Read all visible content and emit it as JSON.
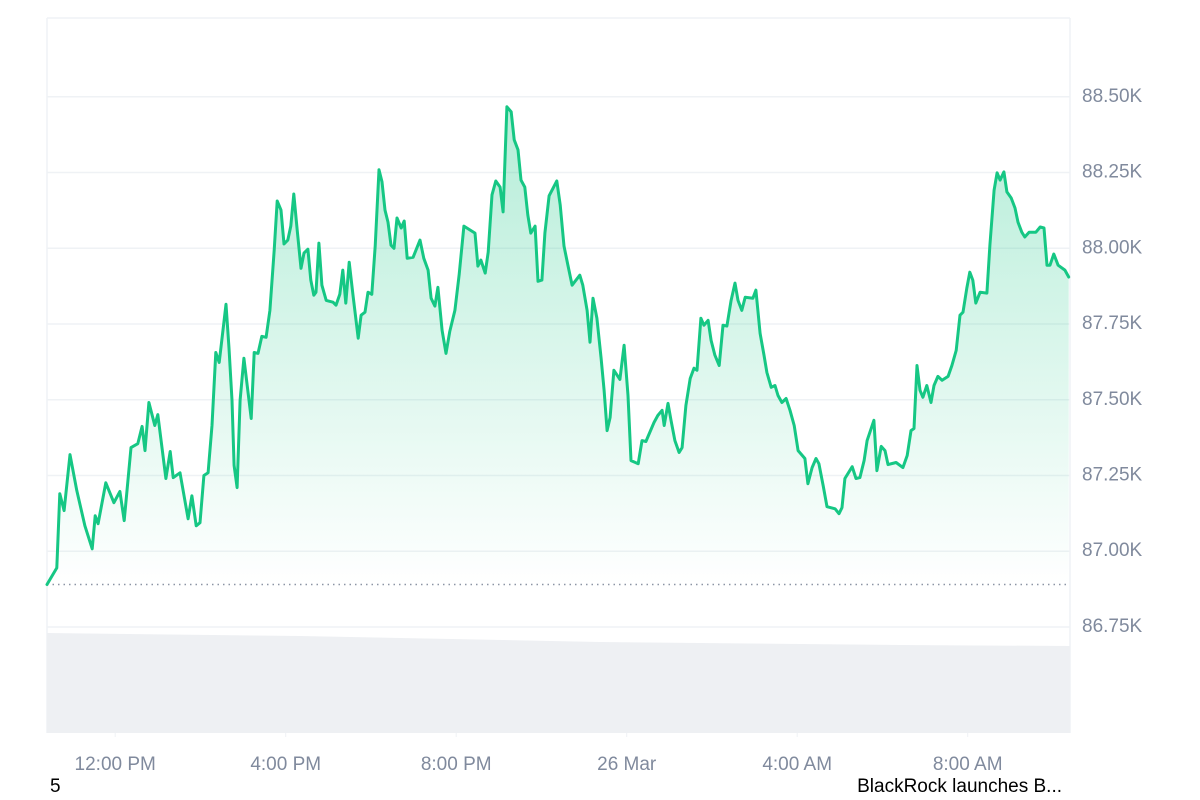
{
  "chart_data": {
    "type": "area",
    "color": "#16c784",
    "grid": true,
    "y_axis_side": "right",
    "xlim": [
      10.4,
      34.4
    ],
    "xticks": [
      {
        "value": 12,
        "label": "12:00 PM"
      },
      {
        "value": 16,
        "label": "4:00 PM"
      },
      {
        "value": 20,
        "label": "8:00 PM"
      },
      {
        "value": 24,
        "label": "26 Mar"
      },
      {
        "value": 28,
        "label": "4:00 AM"
      },
      {
        "value": 32,
        "label": "8:00 AM"
      }
    ],
    "ylim": [
      86400,
      88760
    ],
    "yticks": [
      {
        "value": 86750,
        "label": "86.75K"
      },
      {
        "value": 87000,
        "label": "87.00K"
      },
      {
        "value": 87250,
        "label": "87.25K"
      },
      {
        "value": 87500,
        "label": "87.50K"
      },
      {
        "value": 87750,
        "label": "87.75K"
      },
      {
        "value": 88000,
        "label": "88.00K"
      },
      {
        "value": 88250,
        "label": "88.25K"
      },
      {
        "value": 88500,
        "label": "88.50K"
      }
    ],
    "x": [
      10.4,
      10.63,
      10.7,
      10.8,
      10.94,
      11.1,
      11.29,
      11.46,
      11.53,
      11.6,
      11.78,
      11.97,
      12.11,
      12.21,
      12.37,
      12.53,
      12.63,
      12.7,
      12.79,
      12.93,
      13.0,
      13.19,
      13.29,
      13.36,
      13.52,
      13.71,
      13.8,
      13.9,
      13.99,
      14.08,
      14.18,
      14.27,
      14.36,
      14.44,
      14.6,
      14.67,
      14.74,
      14.79,
      14.86,
      14.93,
      15.02,
      15.19,
      15.26,
      15.35,
      15.44,
      15.54,
      15.63,
      15.73,
      15.8,
      15.89,
      15.96,
      16.05,
      16.12,
      16.19,
      16.27,
      16.36,
      16.43,
      16.52,
      16.59,
      16.66,
      16.71,
      16.78,
      16.85,
      16.95,
      17.11,
      17.18,
      17.27,
      17.34,
      17.41,
      17.49,
      17.58,
      17.7,
      17.77,
      17.86,
      17.93,
      18.02,
      18.1,
      18.19,
      18.26,
      18.33,
      18.4,
      18.47,
      18.54,
      18.61,
      18.71,
      18.78,
      18.85,
      18.99,
      19.15,
      19.24,
      19.34,
      19.41,
      19.5,
      19.57,
      19.67,
      19.76,
      19.85,
      19.97,
      20.07,
      20.18,
      20.44,
      20.51,
      20.58,
      20.68,
      20.75,
      20.84,
      20.93,
      21.03,
      21.1,
      21.19,
      21.29,
      21.36,
      21.45,
      21.52,
      21.61,
      21.68,
      21.75,
      21.85,
      21.92,
      22.01,
      22.08,
      22.18,
      22.36,
      22.44,
      22.53,
      22.62,
      22.72,
      22.9,
      22.97,
      23.07,
      23.14,
      23.21,
      23.3,
      23.4,
      23.47,
      23.54,
      23.61,
      23.7,
      23.84,
      23.94,
      24.03,
      24.1,
      24.27,
      24.36,
      24.45,
      24.64,
      24.73,
      24.83,
      24.88,
      24.97,
      25.04,
      25.13,
      25.23,
      25.3,
      25.39,
      25.49,
      25.58,
      25.65,
      25.74,
      25.81,
      25.91,
      25.98,
      26.07,
      26.17,
      26.26,
      26.35,
      26.45,
      26.54,
      26.61,
      26.7,
      26.78,
      26.96,
      27.03,
      27.13,
      27.22,
      27.29,
      27.39,
      27.48,
      27.55,
      27.64,
      27.74,
      27.83,
      27.93,
      28.02,
      28.18,
      28.25,
      28.35,
      28.44,
      28.51,
      28.61,
      28.7,
      28.89,
      28.98,
      29.05,
      29.12,
      29.29,
      29.38,
      29.47,
      29.57,
      29.64,
      29.8,
      29.87,
      29.97,
      30.06,
      30.13,
      30.32,
      30.48,
      30.58,
      30.67,
      30.74,
      30.81,
      30.88,
      30.95,
      31.04,
      31.14,
      31.21,
      31.3,
      31.4,
      31.54,
      31.63,
      31.73,
      31.82,
      31.89,
      31.98,
      32.05,
      32.12,
      32.19,
      32.29,
      32.45,
      32.52,
      32.62,
      32.69,
      32.76,
      32.85,
      32.92,
      33.02,
      33.11,
      33.18,
      33.27,
      33.34,
      33.44,
      33.6,
      33.7,
      33.79,
      33.86,
      33.93,
      34.02,
      34.12,
      34.28,
      34.37
    ],
    "values": [
      86890,
      86945,
      87190,
      87134,
      87319,
      87200,
      87084,
      87008,
      87117,
      87091,
      87226,
      87160,
      87197,
      87101,
      87342,
      87355,
      87412,
      87332,
      87491,
      87415,
      87451,
      87240,
      87329,
      87243,
      87259,
      87107,
      87183,
      87084,
      87094,
      87250,
      87259,
      87415,
      87656,
      87623,
      87815,
      87670,
      87498,
      87283,
      87210,
      87498,
      87637,
      87438,
      87656,
      87653,
      87709,
      87706,
      87795,
      87994,
      88156,
      88126,
      88014,
      88027,
      88073,
      88179,
      88060,
      87934,
      87984,
      87997,
      87895,
      87845,
      87855,
      88017,
      87878,
      87828,
      87822,
      87812,
      87848,
      87928,
      87819,
      87954,
      87845,
      87703,
      87779,
      87789,
      87855,
      87848,
      88007,
      88259,
      88219,
      88126,
      88086,
      88010,
      88000,
      88100,
      88067,
      88090,
      87967,
      87970,
      88027,
      87967,
      87928,
      87835,
      87809,
      87871,
      87729,
      87653,
      87726,
      87795,
      87914,
      88073,
      88050,
      87941,
      87961,
      87918,
      87987,
      88176,
      88222,
      88202,
      88120,
      88467,
      88450,
      88358,
      88325,
      88225,
      88202,
      88110,
      88050,
      88073,
      87891,
      87895,
      88050,
      88173,
      88222,
      88143,
      88007,
      87944,
      87878,
      87911,
      87878,
      87795,
      87690,
      87835,
      87769,
      87637,
      87531,
      87398,
      87441,
      87597,
      87567,
      87680,
      87514,
      87299,
      87289,
      87365,
      87362,
      87425,
      87448,
      87465,
      87415,
      87488,
      87432,
      87365,
      87326,
      87342,
      87481,
      87570,
      87604,
      87597,
      87769,
      87746,
      87762,
      87696,
      87647,
      87613,
      87746,
      87743,
      87828,
      87885,
      87828,
      87795,
      87838,
      87835,
      87862,
      87719,
      87647,
      87590,
      87541,
      87547,
      87514,
      87491,
      87504,
      87465,
      87415,
      87332,
      87306,
      87223,
      87276,
      87306,
      87289,
      87216,
      87147,
      87140,
      87124,
      87144,
      87240,
      87279,
      87240,
      87243,
      87299,
      87365,
      87432,
      87266,
      87346,
      87332,
      87286,
      87293,
      87276,
      87316,
      87398,
      87405,
      87613,
      87531,
      87508,
      87547,
      87491,
      87547,
      87577,
      87564,
      87577,
      87613,
      87663,
      87779,
      87789,
      87868,
      87921,
      87895,
      87819,
      87855,
      87852,
      88010,
      88192,
      88249,
      88225,
      88252,
      88186,
      88166,
      88133,
      88086,
      88053,
      88037,
      88053,
      88053,
      88070,
      88067,
      87944,
      87944,
      87981,
      87944,
      87928,
      87905
    ],
    "annotations": [
      "5",
      "BlackRock launches B..."
    ]
  }
}
